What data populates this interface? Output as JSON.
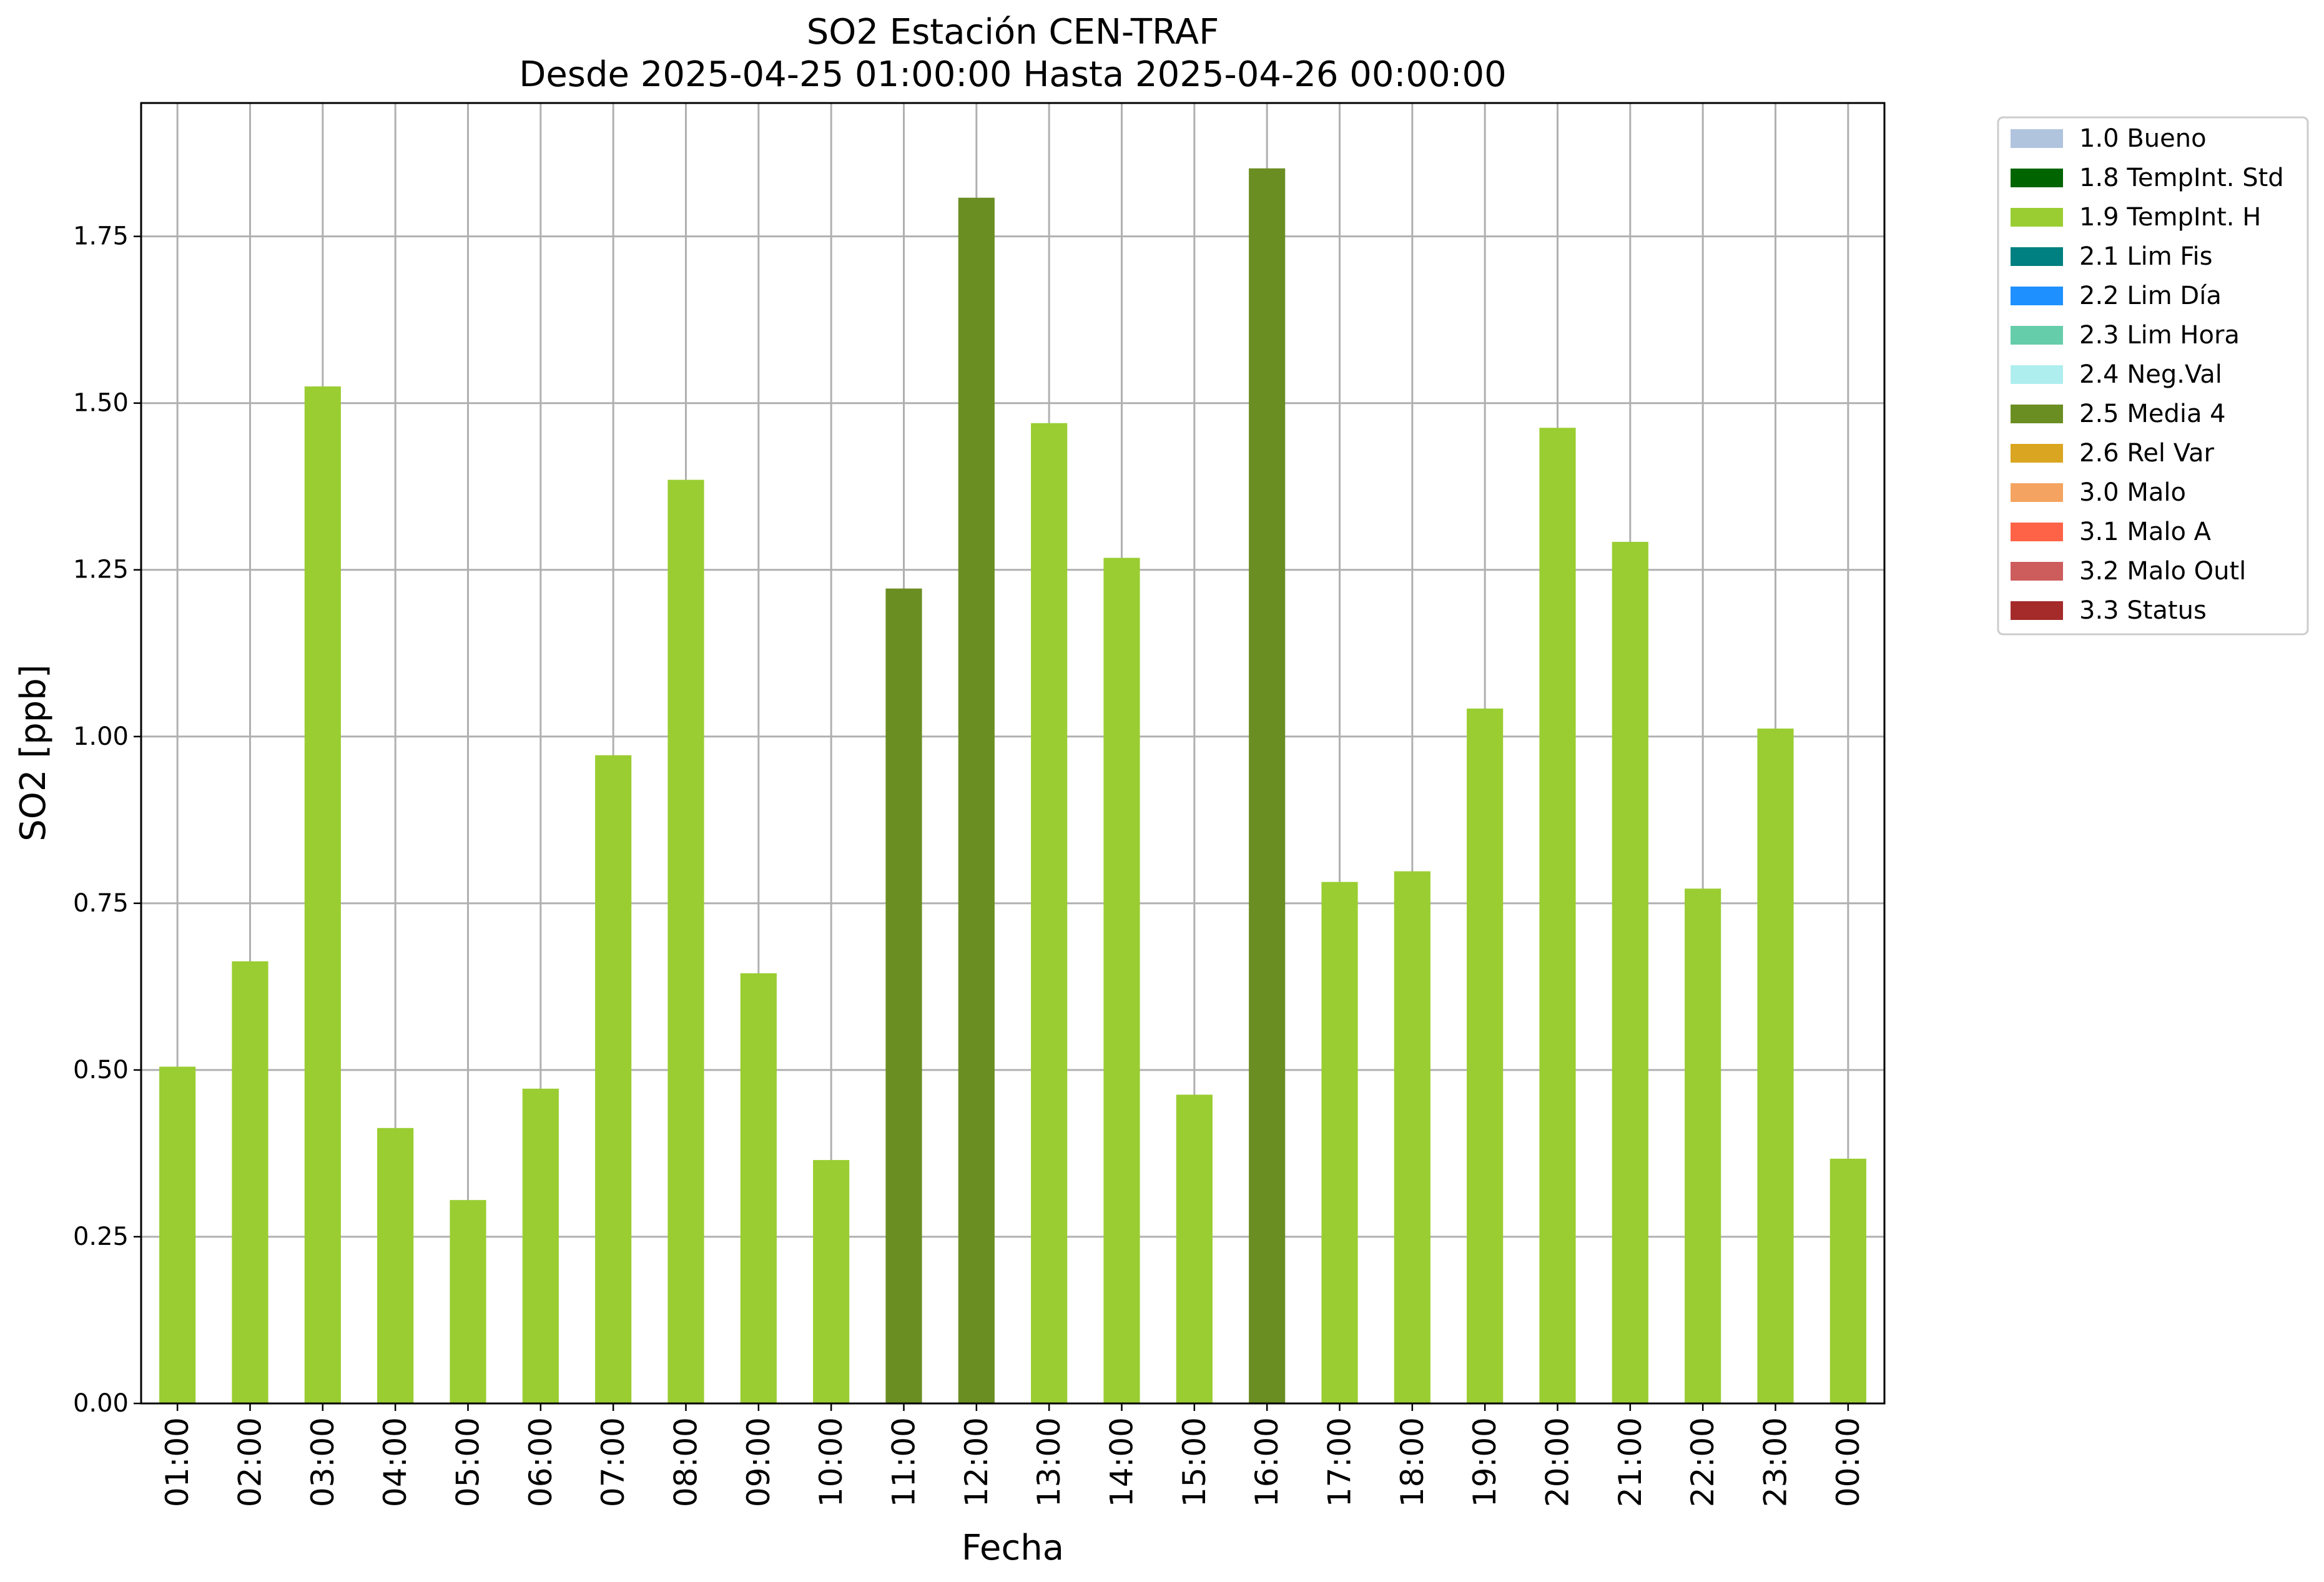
{
  "chart_data": {
    "type": "bar",
    "title": "SO2 Estación CEN-TRAF",
    "subtitle": "Desde 2025-04-25 01:00:00 Hasta 2025-04-26 00:00:00",
    "xlabel": "Fecha",
    "ylabel": "SO2 [ppb]",
    "ylim": [
      0,
      1.95
    ],
    "yticks": [
      0.0,
      0.25,
      0.5,
      0.75,
      1.0,
      1.25,
      1.5,
      1.75
    ],
    "ytick_labels": [
      "0.00",
      "0.25",
      "0.50",
      "0.75",
      "1.00",
      "1.25",
      "1.50",
      "1.75"
    ],
    "grid": true,
    "legend_position": "outside-top-right",
    "categories": [
      "01:00",
      "02:00",
      "03:00",
      "04:00",
      "05:00",
      "06:00",
      "07:00",
      "08:00",
      "09:00",
      "10:00",
      "11:00",
      "12:00",
      "13:00",
      "14:00",
      "15:00",
      "16:00",
      "17:00",
      "18:00",
      "19:00",
      "20:00",
      "21:00",
      "22:00",
      "23:00",
      "00:00"
    ],
    "values": [
      0.505,
      0.663,
      1.525,
      0.413,
      0.305,
      0.472,
      0.972,
      1.385,
      0.645,
      0.365,
      1.222,
      1.808,
      1.47,
      1.268,
      0.463,
      1.852,
      0.782,
      0.798,
      1.042,
      1.463,
      1.292,
      0.772,
      1.012,
      0.367
    ],
    "flags": [
      "1.9 TempInt. H",
      "1.9 TempInt. H",
      "1.9 TempInt. H",
      "1.9 TempInt. H",
      "1.9 TempInt. H",
      "1.9 TempInt. H",
      "1.9 TempInt. H",
      "1.9 TempInt. H",
      "1.9 TempInt. H",
      "1.9 TempInt. H",
      "2.5 Media 4",
      "2.5 Media 4",
      "1.9 TempInt. H",
      "1.9 TempInt. H",
      "1.9 TempInt. H",
      "2.5 Media 4",
      "1.9 TempInt. H",
      "1.9 TempInt. H",
      "1.9 TempInt. H",
      "1.9 TempInt. H",
      "1.9 TempInt. H",
      "1.9 TempInt. H",
      "1.9 TempInt. H",
      "1.9 TempInt. H"
    ],
    "legend": [
      {
        "label": "1.0 Bueno",
        "color": "#b0c4de"
      },
      {
        "label": "1.8 TempInt. Std",
        "color": "#006400"
      },
      {
        "label": "1.9 TempInt. H",
        "color": "#9acd32"
      },
      {
        "label": "2.1 Lim Fis",
        "color": "#008080"
      },
      {
        "label": "2.2 Lim Día",
        "color": "#1e90ff"
      },
      {
        "label": "2.3 Lim Hora",
        "color": "#66cdaa"
      },
      {
        "label": "2.4 Neg.Val",
        "color": "#afeeee"
      },
      {
        "label": "2.5 Media 4",
        "color": "#6b8e23"
      },
      {
        "label": "2.6 Rel Var",
        "color": "#daa520"
      },
      {
        "label": "3.0 Malo",
        "color": "#f4a460"
      },
      {
        "label": "3.1 Malo A",
        "color": "#ff6347"
      },
      {
        "label": "3.2 Malo Outl",
        "color": "#cd5c5c"
      },
      {
        "label": "3.3 Status",
        "color": "#a52a2a"
      }
    ]
  }
}
